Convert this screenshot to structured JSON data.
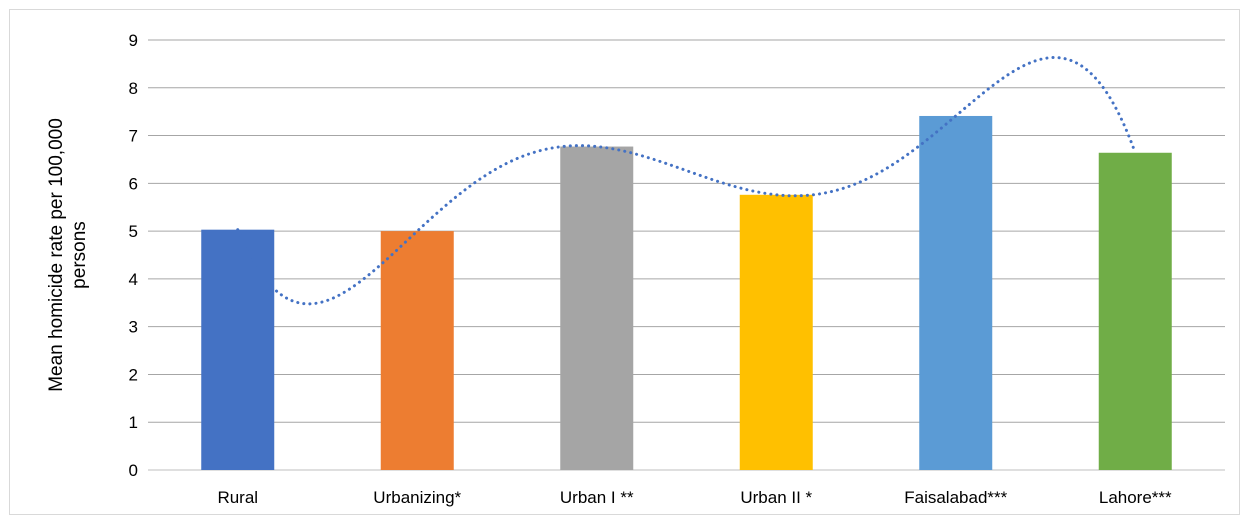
{
  "chart_data": {
    "type": "bar",
    "title": "",
    "xlabel": "",
    "ylabel": "Mean homicide rate per 100,000 persons",
    "categories": [
      "Rural",
      "Urbanizing*",
      "Urban I **",
      "Urban II *",
      "Faisalabad***",
      "Lahore***"
    ],
    "values": [
      5.03,
      5.0,
      6.77,
      5.76,
      7.41,
      6.64
    ],
    "bar_colors": [
      "#4472c4",
      "#ed7d31",
      "#a5a5a5",
      "#ffc000",
      "#5b9bd5",
      "#70ad47"
    ],
    "ylim": [
      0,
      9
    ],
    "yticks": [
      "0",
      "1",
      "2",
      "3",
      "4",
      "5",
      "6",
      "7",
      "8",
      "9"
    ],
    "grid": true,
    "legend": "none",
    "trendline": {
      "type": "polynomial",
      "style": "dotted",
      "color": "#4472c4"
    }
  }
}
